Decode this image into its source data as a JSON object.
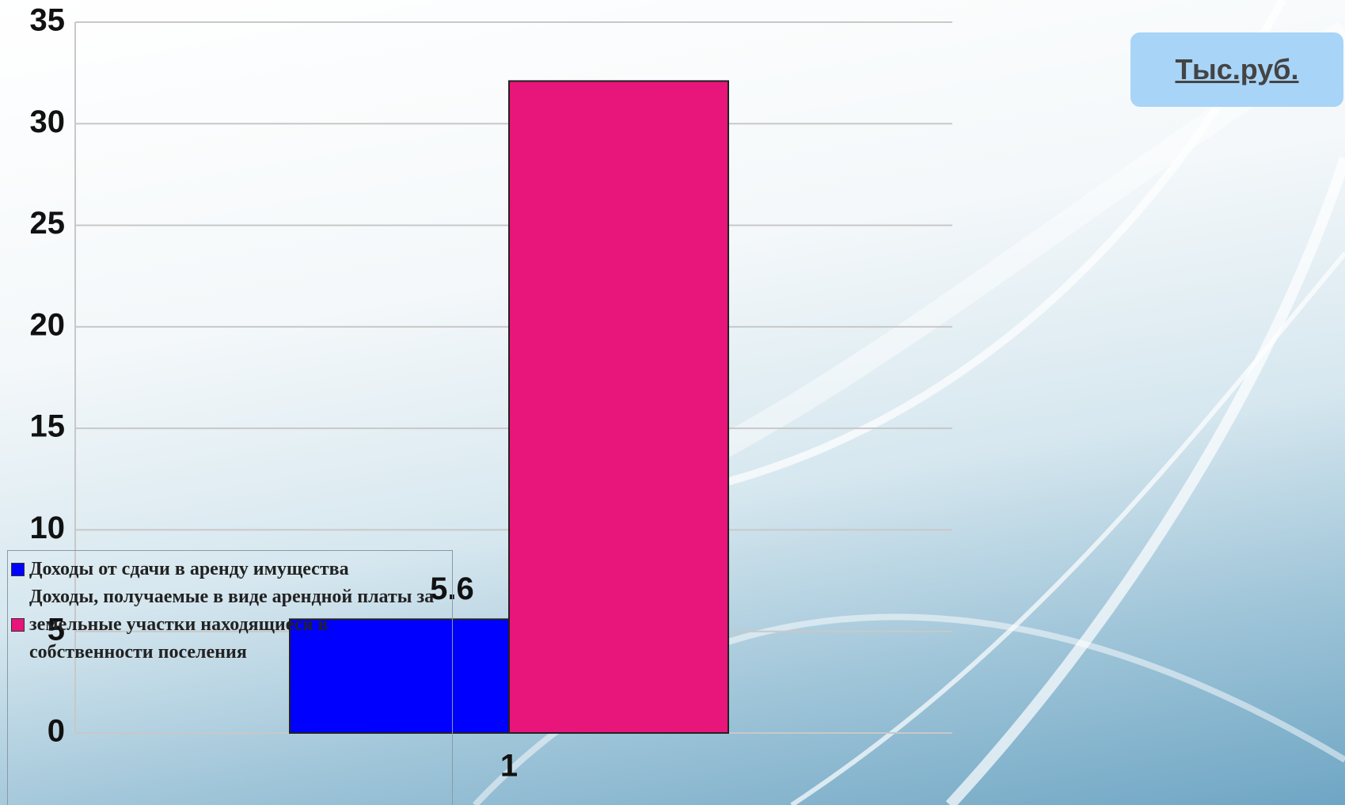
{
  "chart_data": {
    "type": "bar",
    "categories": [
      "1"
    ],
    "series": [
      {
        "name": "Доходы от сдачи в аренду имущества",
        "color": "#0000ff",
        "values": [
          5.6
        ],
        "show_value_labels": true
      },
      {
        "name": "Доходы, получаемые в виде арендной платы за земельные участки находящиеся в собственности поселения",
        "color": "#e8157a",
        "values": [
          32.1
        ],
        "show_value_labels": false
      }
    ],
    "ylim": [
      0,
      35
    ],
    "yticks": [
      0,
      5,
      10,
      15,
      20,
      25,
      30,
      35
    ],
    "grid": true,
    "legend": "bottom-left",
    "annotation": "Тыс.руб."
  }
}
